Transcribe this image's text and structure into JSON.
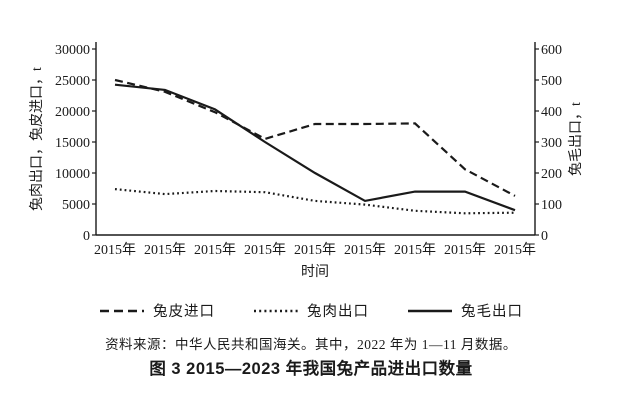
{
  "figure": {
    "caption": "图 3 2015—2023 年我国兔产品进出口数量",
    "source_note": "资料来源：中华人民共和国海关。其中，2022 年为 1—11 月数据。"
  },
  "chart_data": {
    "type": "line",
    "title": "图 3 2015—2023 年我国兔产品进出口数量",
    "x_axis_title": "时间",
    "categories": [
      "2015年",
      "2015年",
      "2015年",
      "2015年",
      "2015年",
      "2015年",
      "2015年",
      "2015年",
      "2015年"
    ],
    "left_axis": {
      "title": "兔肉出口，兔皮进口，t",
      "min": 0,
      "max": 30000,
      "ticks": [
        0,
        5000,
        10000,
        15000,
        20000,
        25000,
        30000
      ]
    },
    "right_axis": {
      "title": "兔毛出口，t",
      "min": 0,
      "max": 600,
      "ticks": [
        0,
        100,
        200,
        300,
        400,
        500,
        600
      ]
    },
    "series": [
      {
        "name": "兔皮进口",
        "axis": "left",
        "style": "dashed",
        "values": [
          25000,
          23100,
          19800,
          15500,
          17900,
          17900,
          18000,
          10600,
          6300
        ]
      },
      {
        "name": "兔肉出口",
        "axis": "left",
        "style": "dotted",
        "values": [
          7400,
          6600,
          7100,
          6900,
          5500,
          4900,
          3900,
          3500,
          3600
        ]
      },
      {
        "name": "兔毛出口",
        "axis": "right",
        "style": "solid",
        "values": [
          485,
          468,
          405,
          300,
          200,
          110,
          140,
          140,
          80
        ]
      }
    ],
    "legend_position": "bottom",
    "grid": false,
    "line_color": "#1a1a1a",
    "background_color": "#ffffff"
  }
}
